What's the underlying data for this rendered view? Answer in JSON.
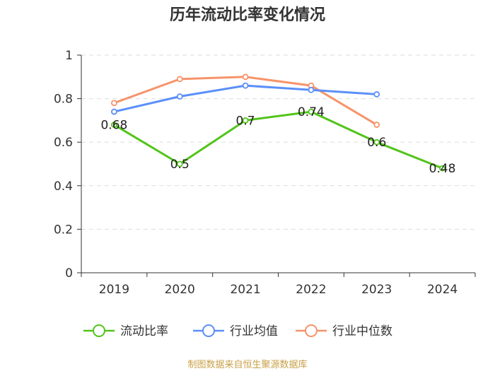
{
  "chart_data": {
    "type": "line",
    "title": "历年流动比率变化情况",
    "categories": [
      "2019",
      "2020",
      "2021",
      "2022",
      "2023",
      "2024"
    ],
    "y_ticks": [
      "0",
      "0.2",
      "0.4",
      "0.6",
      "0.8",
      "1"
    ],
    "ylim": [
      0,
      1
    ],
    "xlabel": "",
    "ylabel": "",
    "grid": true,
    "legend_position": "bottom",
    "series": [
      {
        "name": "流动比率",
        "color": "#52c41a",
        "values": [
          0.68,
          0.5,
          0.7,
          0.74,
          0.6,
          0.48
        ],
        "labels": [
          "0.68",
          "0.5",
          "0.7",
          "0.74",
          "0.6",
          "0.48"
        ],
        "show_labels": true
      },
      {
        "name": "行业均值",
        "color": "#5b8ff9",
        "values": [
          0.74,
          0.81,
          0.86,
          0.84,
          0.82,
          null
        ],
        "show_labels": false
      },
      {
        "name": "行业中位数",
        "color": "#f7936a",
        "values": [
          0.78,
          0.89,
          0.9,
          0.86,
          0.68,
          null
        ],
        "show_labels": false
      }
    ],
    "source_note": "制图数据来自恒生聚源数据库"
  }
}
